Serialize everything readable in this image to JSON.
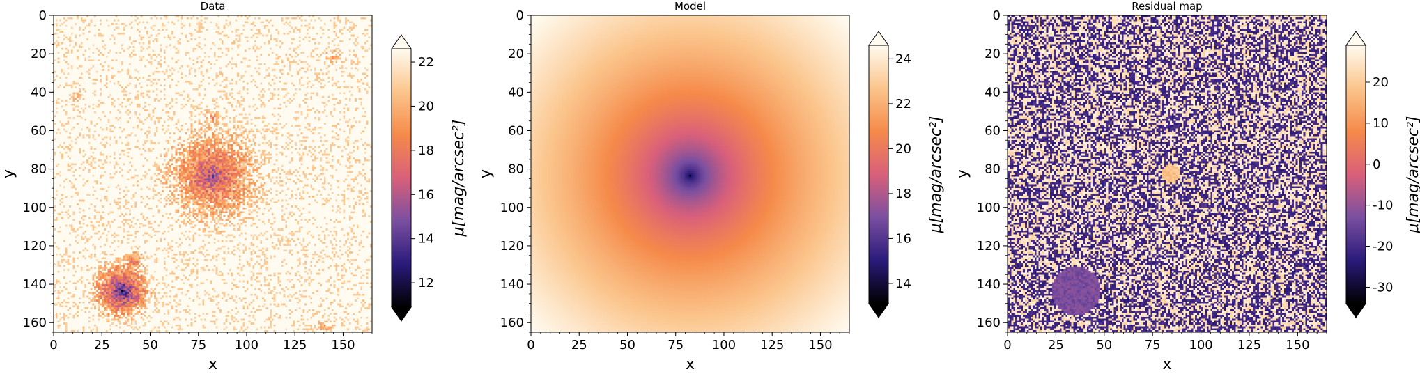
{
  "chart_data": [
    {
      "type": "heatmap",
      "title": "Data",
      "xlabel": "x",
      "ylabel": "y",
      "xlim": [
        0,
        165
      ],
      "ylim": [
        165,
        0
      ],
      "xticks": [
        "0",
        "25",
        "50",
        "75",
        "100",
        "125",
        "150"
      ],
      "yticks": [
        "0",
        "20",
        "40",
        "60",
        "80",
        "100",
        "120",
        "140",
        "160"
      ],
      "colorbar": {
        "label": "μ[mag/arcsec²]",
        "range": [
          10.9,
          22.6
        ],
        "ticks": [
          "12",
          "14",
          "16",
          "18",
          "20",
          "22"
        ],
        "extend": "both"
      },
      "colormap": [
        "#000000",
        "#2a1a7a",
        "#7a4fa0",
        "#d9607a",
        "#f58a4a",
        "#fbc58c",
        "#fffbf0"
      ],
      "features": [
        {
          "x": 82,
          "y": 83,
          "peak": 14.6,
          "sigma": 10
        },
        {
          "x": 35,
          "y": 143,
          "peak": 11.5,
          "sigma": 6
        },
        {
          "x": 27,
          "y": 144,
          "peak": 15.5,
          "sigma": 2.5
        },
        {
          "x": 41,
          "y": 129,
          "peak": 17.2,
          "sigma": 3
        },
        {
          "x": 82,
          "y": 53,
          "peak": 18.0,
          "sigma": 2
        },
        {
          "x": 144,
          "y": 21,
          "peak": 19.5,
          "sigma": 2
        },
        {
          "x": 12,
          "y": 42,
          "peak": 19.8,
          "sigma": 1.5
        },
        {
          "x": 140,
          "y": 162,
          "peak": 19.5,
          "sigma": 2
        }
      ]
    },
    {
      "type": "heatmap",
      "title": "Model",
      "xlabel": "x",
      "ylabel": "y",
      "xlim": [
        0,
        165
      ],
      "ylim": [
        165,
        0
      ],
      "xticks": [
        "0",
        "25",
        "50",
        "75",
        "100",
        "125",
        "150"
      ],
      "yticks": [
        "0",
        "20",
        "40",
        "60",
        "80",
        "100",
        "120",
        "140",
        "160"
      ],
      "colorbar": {
        "label": "μ[mag/arcsec²]",
        "range": [
          13.1,
          24.6
        ],
        "ticks": [
          "14",
          "16",
          "18",
          "20",
          "22",
          "24"
        ],
        "extend": "both"
      },
      "colormap": [
        "#000000",
        "#2a1a7a",
        "#7a4fa0",
        "#d9607a",
        "#f58a4a",
        "#fbc58c",
        "#fffbf0"
      ],
      "features": [
        {
          "x": 82,
          "y": 83,
          "peak": 13.2,
          "sigma": 0
        }
      ]
    },
    {
      "type": "heatmap",
      "title": "Residual map",
      "xlabel": "x",
      "ylabel": "y",
      "xlim": [
        0,
        165
      ],
      "ylim": [
        165,
        0
      ],
      "xticks": [
        "0",
        "25",
        "50",
        "75",
        "100",
        "125",
        "150"
      ],
      "yticks": [
        "0",
        "20",
        "40",
        "60",
        "80",
        "100",
        "120",
        "140",
        "160"
      ],
      "colorbar": {
        "label": "μ[mag/arcsec²]",
        "range": [
          -34,
          29
        ],
        "ticks": [
          "20",
          "10",
          "0",
          "-10",
          "-20",
          "-30"
        ],
        "extend": "both"
      },
      "colormap": [
        "#000000",
        "#2a1a7a",
        "#7a4fa0",
        "#d9607a",
        "#f58a4a",
        "#fbc58c",
        "#fffbf0"
      ],
      "features": [
        {
          "x": 35,
          "y": 143,
          "peak": -13,
          "sigma": 8
        },
        {
          "x": 84,
          "y": 82,
          "peak": 18,
          "sigma": 3
        }
      ]
    }
  ]
}
